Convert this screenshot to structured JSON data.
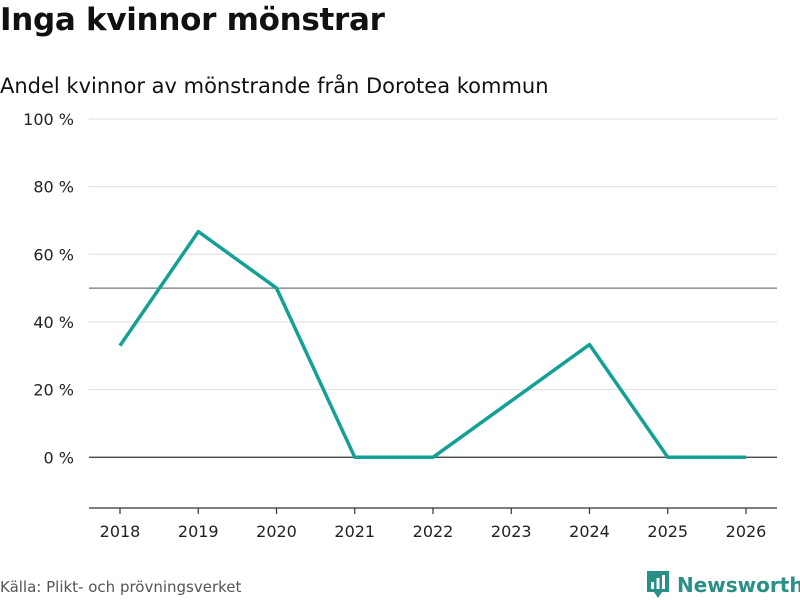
{
  "title": "Inga kvinnor mönstrar",
  "subtitle": "Andel kvinnor av mönstrande från Dorotea kommun",
  "source": "Källa: Plikt- och prövningsverket",
  "brand": "Newsworthy",
  "colors": {
    "line": "#13a095",
    "brand": "#2a8f87",
    "grid": "#dddddd",
    "axis": "#333333"
  },
  "chart_data": {
    "type": "line",
    "title": "Inga kvinnor mönstrar",
    "subtitle": "Andel kvinnor av mönstrande från Dorotea kommun",
    "xlabel": "",
    "ylabel": "",
    "x": [
      2018,
      2019,
      2020,
      2021,
      2022,
      2023,
      2024,
      2025,
      2026
    ],
    "x_tick_labels": [
      "2018",
      "2019",
      "2020",
      "2021",
      "2022",
      "2023",
      "2024",
      "2025",
      "2026"
    ],
    "y_ticks": [
      0,
      20,
      40,
      60,
      80,
      100
    ],
    "y_tick_labels": [
      "0 %",
      "20 %",
      "40 %",
      "60 %",
      "80 %",
      "100 %"
    ],
    "ylim": [
      -15,
      100
    ],
    "reference_line": 50,
    "series": [
      {
        "name": "Andel kvinnor",
        "x": [
          2018,
          2019,
          2020,
          2021,
          2022,
          2024,
          2025,
          2026
        ],
        "values": [
          33,
          66.7,
          50,
          0,
          0,
          33.3,
          0,
          0
        ]
      }
    ]
  }
}
